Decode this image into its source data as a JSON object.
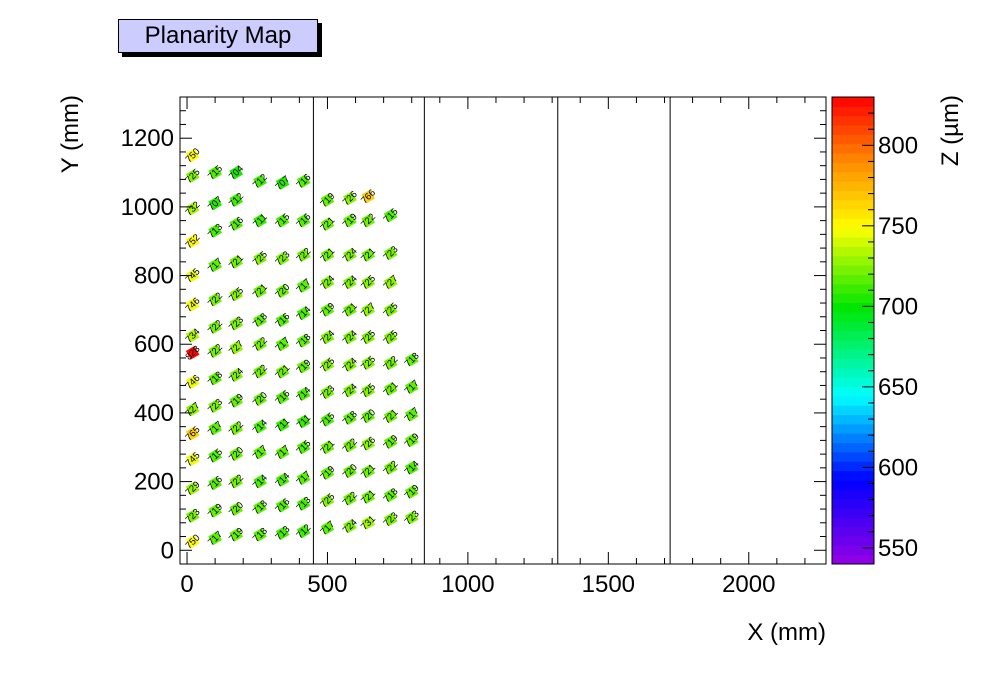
{
  "title": "Planarity Map",
  "chart_data": {
    "type": "scatter",
    "title": "Planarity Map",
    "xlabel": "X (mm)",
    "ylabel": "Y (mm)",
    "zlabel": "Z (µm)",
    "xlim": [
      -25,
      2275
    ],
    "ylim": [
      -40,
      1320
    ],
    "zlim": [
      540,
      830
    ],
    "xticks": [
      0,
      500,
      1000,
      1500,
      2000
    ],
    "yticks": [
      0,
      200,
      400,
      600,
      800,
      1000,
      1200
    ],
    "zticks": [
      550,
      600,
      650,
      700,
      750,
      800
    ],
    "vertical_lines_x": [
      450,
      845,
      1320,
      1720
    ],
    "legend": "colorbar-right",
    "points": [
      {
        "x": 20,
        "y": 1150,
        "z": 750
      },
      {
        "x": 20,
        "y": 1090,
        "z": 725
      },
      {
        "x": 100,
        "y": 1100,
        "z": 715
      },
      {
        "x": 175,
        "y": 1100,
        "z": 704
      },
      {
        "x": 20,
        "y": 995,
        "z": 732
      },
      {
        "x": 100,
        "y": 1010,
        "z": 707
      },
      {
        "x": 175,
        "y": 1020,
        "z": 712
      },
      {
        "x": 260,
        "y": 1075,
        "z": 712
      },
      {
        "x": 340,
        "y": 1070,
        "z": 707
      },
      {
        "x": 415,
        "y": 1075,
        "z": 716
      },
      {
        "x": 500,
        "y": 1020,
        "z": 719
      },
      {
        "x": 580,
        "y": 1025,
        "z": 726
      },
      {
        "x": 645,
        "y": 1030,
        "z": 766
      },
      {
        "x": 20,
        "y": 900,
        "z": 752
      },
      {
        "x": 100,
        "y": 930,
        "z": 713
      },
      {
        "x": 175,
        "y": 950,
        "z": 716
      },
      {
        "x": 260,
        "y": 960,
        "z": 711
      },
      {
        "x": 340,
        "y": 960,
        "z": 715
      },
      {
        "x": 415,
        "y": 960,
        "z": 716
      },
      {
        "x": 500,
        "y": 950,
        "z": 721
      },
      {
        "x": 580,
        "y": 960,
        "z": 719
      },
      {
        "x": 645,
        "y": 960,
        "z": 722
      },
      {
        "x": 725,
        "y": 975,
        "z": 715
      },
      {
        "x": 20,
        "y": 800,
        "z": 745
      },
      {
        "x": 100,
        "y": 830,
        "z": 717
      },
      {
        "x": 175,
        "y": 840,
        "z": 721
      },
      {
        "x": 260,
        "y": 850,
        "z": 725
      },
      {
        "x": 340,
        "y": 850,
        "z": 723
      },
      {
        "x": 415,
        "y": 860,
        "z": 722
      },
      {
        "x": 500,
        "y": 860,
        "z": 721
      },
      {
        "x": 580,
        "y": 860,
        "z": 724
      },
      {
        "x": 645,
        "y": 860,
        "z": 721
      },
      {
        "x": 725,
        "y": 865,
        "z": 723
      },
      {
        "x": 20,
        "y": 715,
        "z": 746
      },
      {
        "x": 100,
        "y": 730,
        "z": 722
      },
      {
        "x": 175,
        "y": 745,
        "z": 725
      },
      {
        "x": 260,
        "y": 755,
        "z": 721
      },
      {
        "x": 340,
        "y": 755,
        "z": 720
      },
      {
        "x": 415,
        "y": 770,
        "z": 717
      },
      {
        "x": 500,
        "y": 780,
        "z": 724
      },
      {
        "x": 580,
        "y": 780,
        "z": 724
      },
      {
        "x": 645,
        "y": 780,
        "z": 725
      },
      {
        "x": 725,
        "y": 780,
        "z": 727
      },
      {
        "x": 20,
        "y": 625,
        "z": 734
      },
      {
        "x": 100,
        "y": 650,
        "z": 722
      },
      {
        "x": 175,
        "y": 660,
        "z": 723
      },
      {
        "x": 260,
        "y": 670,
        "z": 718
      },
      {
        "x": 340,
        "y": 670,
        "z": 716
      },
      {
        "x": 415,
        "y": 690,
        "z": 714
      },
      {
        "x": 500,
        "y": 700,
        "z": 719
      },
      {
        "x": 580,
        "y": 700,
        "z": 721
      },
      {
        "x": 645,
        "y": 700,
        "z": 727
      },
      {
        "x": 725,
        "y": 700,
        "z": 725
      },
      {
        "x": 20,
        "y": 575,
        "z": 828
      },
      {
        "x": 100,
        "y": 580,
        "z": 722
      },
      {
        "x": 175,
        "y": 590,
        "z": 727
      },
      {
        "x": 260,
        "y": 600,
        "z": 722
      },
      {
        "x": 340,
        "y": 600,
        "z": 717
      },
      {
        "x": 415,
        "y": 610,
        "z": 718
      },
      {
        "x": 500,
        "y": 620,
        "z": 724
      },
      {
        "x": 580,
        "y": 620,
        "z": 724
      },
      {
        "x": 645,
        "y": 620,
        "z": 725
      },
      {
        "x": 725,
        "y": 620,
        "z": 725
      },
      {
        "x": 20,
        "y": 490,
        "z": 746
      },
      {
        "x": 100,
        "y": 500,
        "z": 718
      },
      {
        "x": 175,
        "y": 510,
        "z": 724
      },
      {
        "x": 260,
        "y": 520,
        "z": 722
      },
      {
        "x": 340,
        "y": 520,
        "z": 721
      },
      {
        "x": 415,
        "y": 535,
        "z": 719
      },
      {
        "x": 500,
        "y": 540,
        "z": 725
      },
      {
        "x": 580,
        "y": 540,
        "z": 724
      },
      {
        "x": 645,
        "y": 545,
        "z": 725
      },
      {
        "x": 725,
        "y": 545,
        "z": 722
      },
      {
        "x": 800,
        "y": 555,
        "z": 718
      },
      {
        "x": 20,
        "y": 410,
        "z": 727
      },
      {
        "x": 100,
        "y": 420,
        "z": 723
      },
      {
        "x": 175,
        "y": 435,
        "z": 719
      },
      {
        "x": 260,
        "y": 440,
        "z": 720
      },
      {
        "x": 340,
        "y": 445,
        "z": 716
      },
      {
        "x": 415,
        "y": 455,
        "z": 714
      },
      {
        "x": 500,
        "y": 460,
        "z": 723
      },
      {
        "x": 580,
        "y": 465,
        "z": 724
      },
      {
        "x": 645,
        "y": 465,
        "z": 725
      },
      {
        "x": 725,
        "y": 470,
        "z": 721
      },
      {
        "x": 800,
        "y": 475,
        "z": 717
      },
      {
        "x": 20,
        "y": 340,
        "z": 765
      },
      {
        "x": 100,
        "y": 355,
        "z": 717
      },
      {
        "x": 175,
        "y": 355,
        "z": 722
      },
      {
        "x": 260,
        "y": 360,
        "z": 714
      },
      {
        "x": 340,
        "y": 365,
        "z": 711
      },
      {
        "x": 415,
        "y": 375,
        "z": 711
      },
      {
        "x": 500,
        "y": 380,
        "z": 715
      },
      {
        "x": 580,
        "y": 385,
        "z": 718
      },
      {
        "x": 645,
        "y": 390,
        "z": 720
      },
      {
        "x": 725,
        "y": 390,
        "z": 721
      },
      {
        "x": 800,
        "y": 395,
        "z": 717
      },
      {
        "x": 20,
        "y": 265,
        "z": 745
      },
      {
        "x": 100,
        "y": 275,
        "z": 715
      },
      {
        "x": 175,
        "y": 280,
        "z": 720
      },
      {
        "x": 260,
        "y": 285,
        "z": 717
      },
      {
        "x": 340,
        "y": 285,
        "z": 717
      },
      {
        "x": 415,
        "y": 300,
        "z": 715
      },
      {
        "x": 500,
        "y": 300,
        "z": 721
      },
      {
        "x": 580,
        "y": 305,
        "z": 722
      },
      {
        "x": 645,
        "y": 310,
        "z": 726
      },
      {
        "x": 725,
        "y": 315,
        "z": 719
      },
      {
        "x": 800,
        "y": 320,
        "z": 719
      },
      {
        "x": 20,
        "y": 180,
        "z": 729
      },
      {
        "x": 100,
        "y": 195,
        "z": 716
      },
      {
        "x": 175,
        "y": 200,
        "z": 722
      },
      {
        "x": 260,
        "y": 200,
        "z": 714
      },
      {
        "x": 340,
        "y": 205,
        "z": 714
      },
      {
        "x": 415,
        "y": 210,
        "z": 717
      },
      {
        "x": 500,
        "y": 225,
        "z": 719
      },
      {
        "x": 580,
        "y": 230,
        "z": 720
      },
      {
        "x": 645,
        "y": 230,
        "z": 721
      },
      {
        "x": 725,
        "y": 240,
        "z": 722
      },
      {
        "x": 800,
        "y": 240,
        "z": 714
      },
      {
        "x": 20,
        "y": 100,
        "z": 723
      },
      {
        "x": 100,
        "y": 115,
        "z": 719
      },
      {
        "x": 175,
        "y": 120,
        "z": 720
      },
      {
        "x": 260,
        "y": 125,
        "z": 718
      },
      {
        "x": 340,
        "y": 130,
        "z": 716
      },
      {
        "x": 415,
        "y": 135,
        "z": 713
      },
      {
        "x": 500,
        "y": 145,
        "z": 725
      },
      {
        "x": 580,
        "y": 150,
        "z": 722
      },
      {
        "x": 645,
        "y": 155,
        "z": 721
      },
      {
        "x": 725,
        "y": 160,
        "z": 718
      },
      {
        "x": 800,
        "y": 170,
        "z": 719
      },
      {
        "x": 20,
        "y": 25,
        "z": 750
      },
      {
        "x": 100,
        "y": 35,
        "z": 717
      },
      {
        "x": 175,
        "y": 45,
        "z": 719
      },
      {
        "x": 260,
        "y": 45,
        "z": 718
      },
      {
        "x": 340,
        "y": 50,
        "z": 713
      },
      {
        "x": 415,
        "y": 55,
        "z": 712
      },
      {
        "x": 500,
        "y": 65,
        "z": 717
      },
      {
        "x": 580,
        "y": 70,
        "z": 724
      },
      {
        "x": 645,
        "y": 80,
        "z": 731
      },
      {
        "x": 725,
        "y": 90,
        "z": 723
      },
      {
        "x": 800,
        "y": 95,
        "z": 723
      }
    ]
  }
}
